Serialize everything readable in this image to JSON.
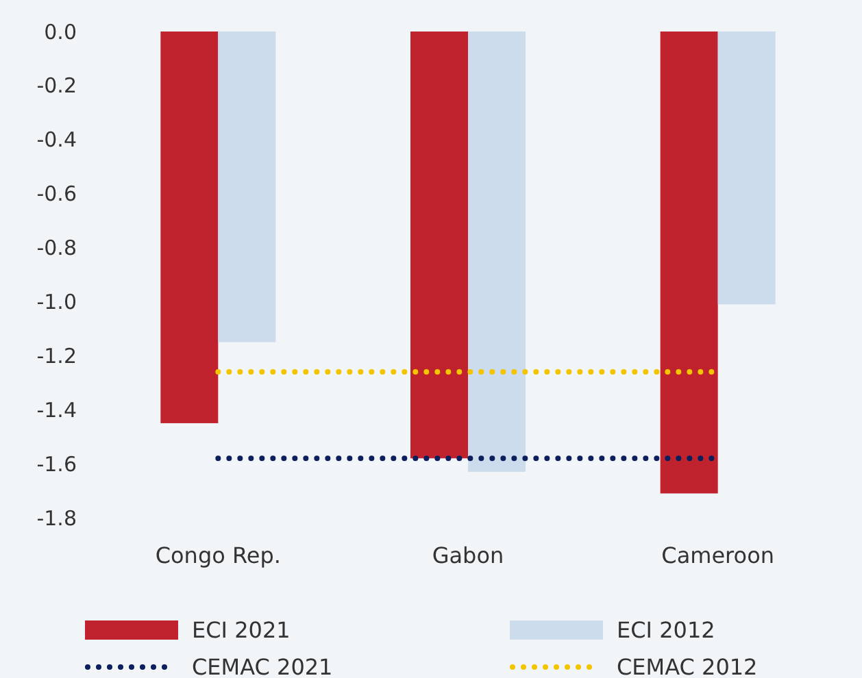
{
  "chart_data": {
    "type": "bar",
    "categories": [
      "Congo Rep.",
      "Gabon",
      "Cameroon"
    ],
    "series": [
      {
        "name": "ECI 2021",
        "color": "#c0232e",
        "values": [
          -1.45,
          -1.58,
          -1.71
        ]
      },
      {
        "name": "ECI 2012",
        "color": "#cddcec",
        "values": [
          -1.15,
          -1.63,
          -1.01
        ]
      },
      {
        "name": "CEMAC 2021",
        "type": "line",
        "color": "#0a1f5c",
        "line_style": "dotted",
        "values": [
          -1.58,
          -1.58,
          -1.58
        ]
      },
      {
        "name": "CEMAC 2012",
        "type": "line",
        "color": "#f5c400",
        "line_style": "dotted",
        "values": [
          -1.26,
          -1.26,
          -1.26
        ]
      }
    ],
    "ylim": [
      -1.8,
      0
    ],
    "yticks": [
      {
        "value": 0,
        "label": "0.0"
      },
      {
        "value": -0.2,
        "label": "-0.2"
      },
      {
        "value": -0.4,
        "label": "-0.4"
      },
      {
        "value": -0.6,
        "label": "-0.6"
      },
      {
        "value": -0.8,
        "label": "-0.8"
      },
      {
        "value": -1,
        "label": "-1.0"
      },
      {
        "value": -1.2,
        "label": "-1.2"
      },
      {
        "value": -1.4,
        "label": "-1.4"
      },
      {
        "value": -1.6,
        "label": "-1.6"
      },
      {
        "value": -1.8,
        "label": "-1.8"
      }
    ],
    "grid": false,
    "legend": "bottom"
  }
}
